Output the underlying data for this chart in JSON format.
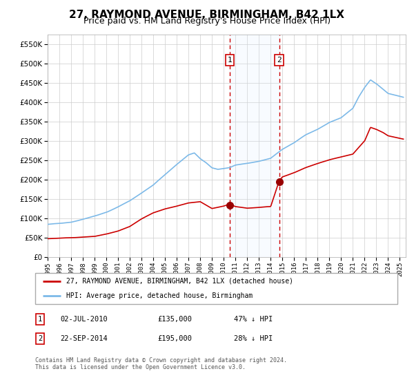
{
  "title": "27, RAYMOND AVENUE, BIRMINGHAM, B42 1LX",
  "subtitle": "Price paid vs. HM Land Registry's House Price Index (HPI)",
  "ylim": [
    0,
    575000
  ],
  "yticks": [
    0,
    50000,
    100000,
    150000,
    200000,
    250000,
    300000,
    350000,
    400000,
    450000,
    500000,
    550000
  ],
  "xlim_start": 1995.0,
  "xlim_end": 2025.5,
  "sale1_date": 2010.5,
  "sale1_price": 135000,
  "sale1_label": "1",
  "sale1_display": "02-JUL-2010",
  "sale1_price_display": "£135,000",
  "sale1_pct": "47% ↓ HPI",
  "sale2_date": 2014.72,
  "sale2_price": 195000,
  "sale2_label": "2",
  "sale2_display": "22-SEP-2014",
  "sale2_price_display": "£195,000",
  "sale2_pct": "28% ↓ HPI",
  "hpi_color": "#7cb9e8",
  "price_color": "#cc0000",
  "marker_color": "#990000",
  "shade_color": "#ddeeff",
  "vline_color": "#cc0000",
  "grid_color": "#cccccc",
  "legend_line1": "27, RAYMOND AVENUE, BIRMINGHAM, B42 1LX (detached house)",
  "legend_line2": "HPI: Average price, detached house, Birmingham",
  "footnote1": "Contains HM Land Registry data © Crown copyright and database right 2024.",
  "footnote2": "This data is licensed under the Open Government Licence v3.0.",
  "background_color": "#ffffff",
  "title_fontsize": 11,
  "subtitle_fontsize": 9
}
